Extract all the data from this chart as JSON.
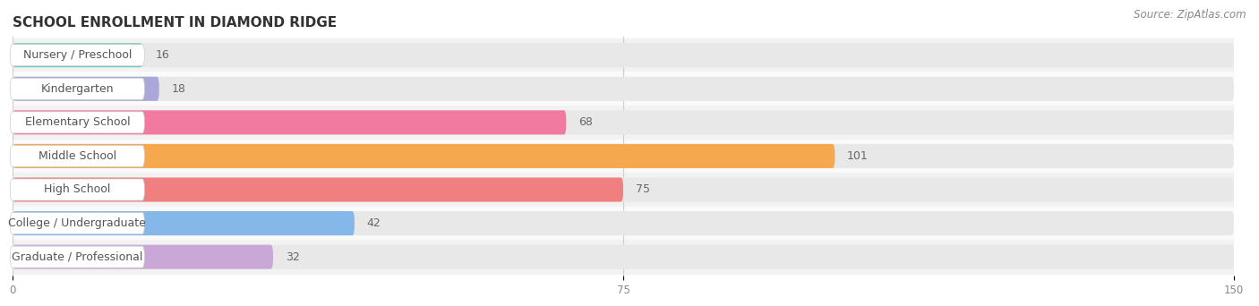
{
  "title": "SCHOOL ENROLLMENT IN DIAMOND RIDGE",
  "source": "Source: ZipAtlas.com",
  "categories": [
    "Nursery / Preschool",
    "Kindergarten",
    "Elementary School",
    "Middle School",
    "High School",
    "College / Undergraduate",
    "Graduate / Professional"
  ],
  "values": [
    16,
    18,
    68,
    101,
    75,
    42,
    32
  ],
  "bar_colors": [
    "#6ecfbf",
    "#a9a8d8",
    "#f279a0",
    "#f5a84e",
    "#f08080",
    "#85b8e8",
    "#c9a8d8"
  ],
  "bar_bg_color": "#e8e8e8",
  "row_bg_colors": [
    "#f2f2f2",
    "#fafafa"
  ],
  "xlim": [
    0,
    150
  ],
  "xticks": [
    0,
    75,
    150
  ],
  "bar_height": 0.72,
  "title_fontsize": 11,
  "label_fontsize": 9,
  "value_fontsize": 9,
  "source_fontsize": 8.5
}
